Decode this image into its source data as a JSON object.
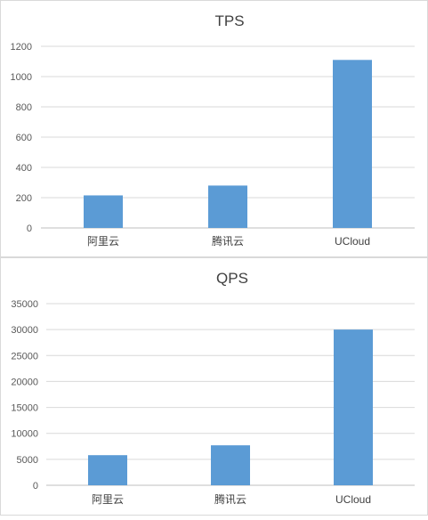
{
  "chart_data": [
    {
      "type": "bar",
      "title": "TPS",
      "categories": [
        "阿里云",
        "腾讯云",
        "UCloud"
      ],
      "values": [
        215,
        280,
        1110
      ],
      "ylim": [
        0,
        1200
      ],
      "yticks": [
        0,
        200,
        400,
        600,
        800,
        1000,
        1200
      ],
      "xlabel": "",
      "ylabel": "",
      "grid": true,
      "bar_color": "#5b9bd5"
    },
    {
      "type": "bar",
      "title": "QPS",
      "categories": [
        "阿里云",
        "腾讯云",
        "UCloud"
      ],
      "values": [
        5800,
        7700,
        30000
      ],
      "ylim": [
        0,
        35000
      ],
      "yticks": [
        0,
        5000,
        10000,
        15000,
        20000,
        25000,
        30000,
        35000
      ],
      "xlabel": "",
      "ylabel": "",
      "grid": true,
      "bar_color": "#5b9bd5"
    }
  ]
}
